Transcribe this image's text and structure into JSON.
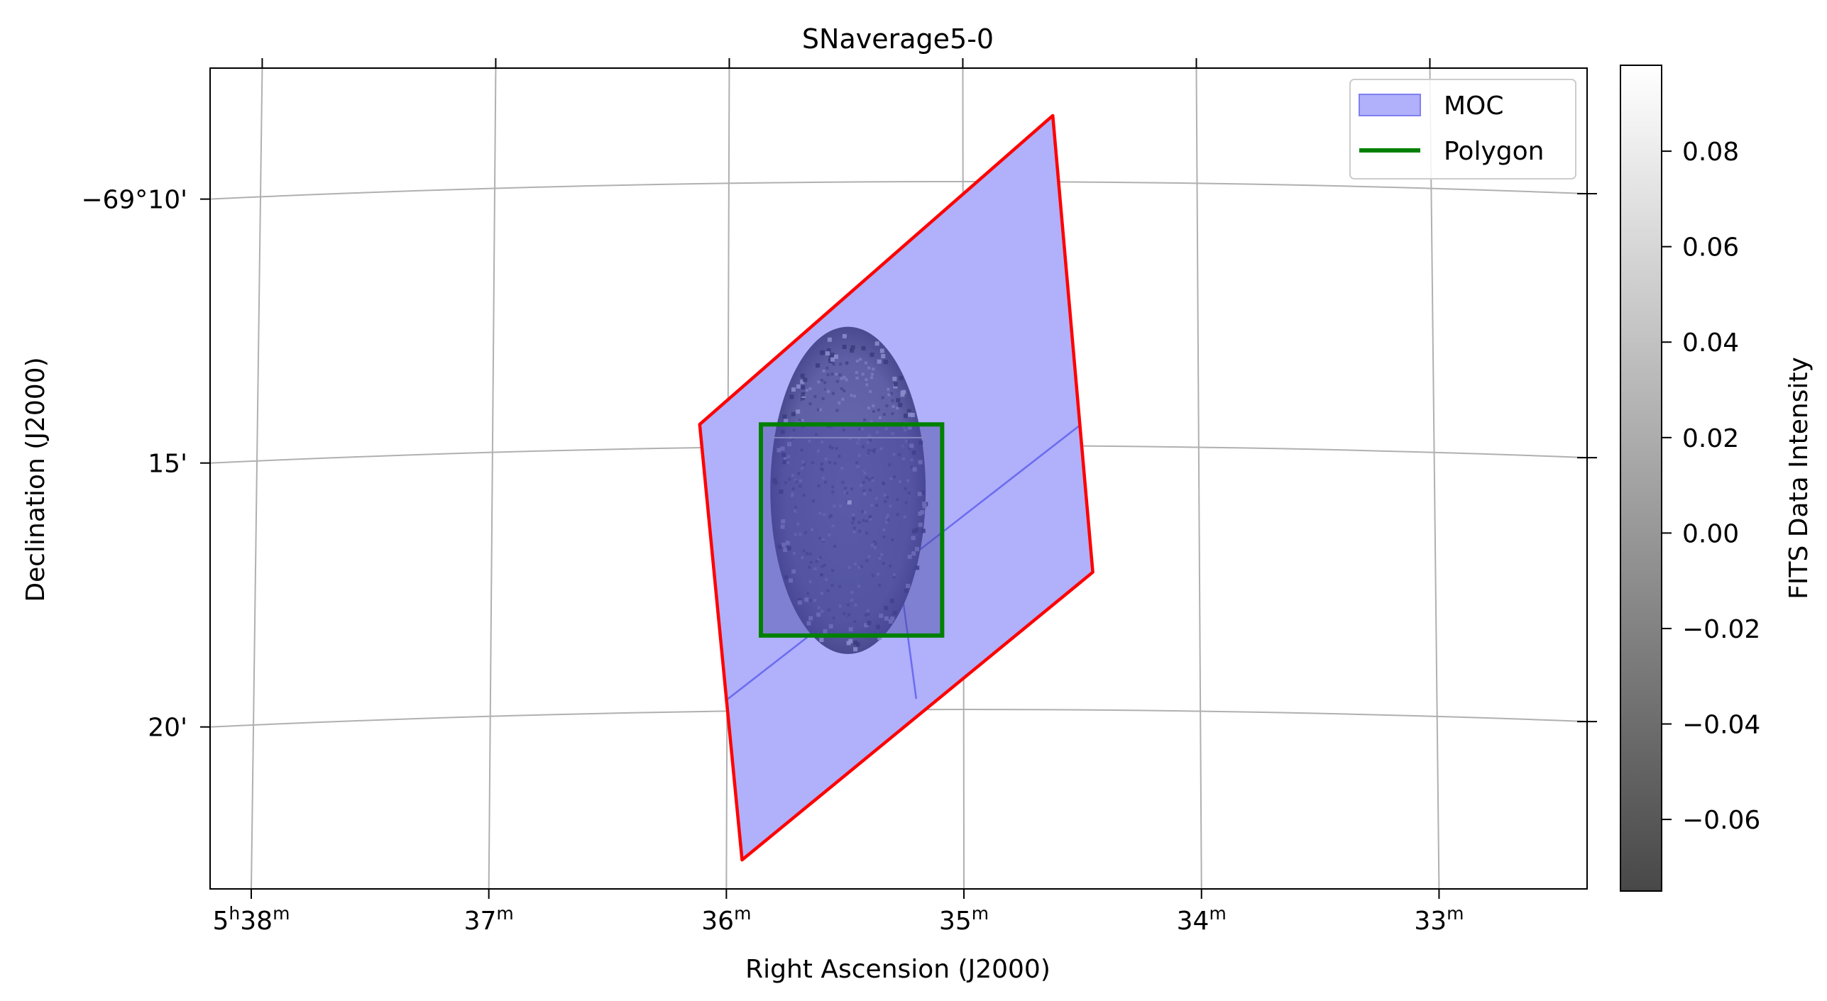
{
  "chart_data": {
    "type": "sky-map",
    "title": "SNaverage5-0",
    "xlabel": "Right Ascension (J2000)",
    "ylabel": "Declination (J2000)",
    "x_units": "minutes of RA (5h + value)",
    "y_units": "arcminutes below -69 deg",
    "xlim": [
      38.2,
      32.35
    ],
    "ylim": [
      23.4,
      7.85
    ],
    "grid": true,
    "x_ticks": [
      {
        "value": 38,
        "main": "5",
        "sup1": "h",
        "main2": "38",
        "sup2": "m"
      },
      {
        "value": 37,
        "main": "",
        "sup1": "",
        "main2": "37",
        "sup2": "m"
      },
      {
        "value": 36,
        "main": "",
        "sup1": "",
        "main2": "36",
        "sup2": "m"
      },
      {
        "value": 35,
        "main": "",
        "sup1": "",
        "main2": "35",
        "sup2": "m"
      },
      {
        "value": 34,
        "main": "",
        "sup1": "",
        "main2": "34",
        "sup2": "m"
      },
      {
        "value": 33,
        "main": "",
        "sup1": "",
        "main2": "33",
        "sup2": "m"
      }
    ],
    "y_ticks": [
      {
        "value": 10,
        "label": "−69°10'"
      },
      {
        "value": 15,
        "label": "15'"
      },
      {
        "value": 20,
        "label": "20'"
      }
    ],
    "moc_region": {
      "fill": "#b0b0fb",
      "outline_color": "#ff0000",
      "vertices": [
        [
          36.12,
          14.6
        ],
        [
          34.62,
          8.75
        ],
        [
          34.45,
          17.4
        ],
        [
          35.94,
          22.85
        ]
      ]
    },
    "moc_inner_lines": [
      {
        "points": [
          [
            36.0,
            19.8
          ],
          [
            34.5,
            14.6
          ]
        ]
      },
      {
        "points": [
          [
            35.26,
            17.8
          ],
          [
            35.2,
            19.8
          ]
        ]
      }
    ],
    "polygon": {
      "color": "#008000",
      "vertices": [
        [
          35.86,
          14.6
        ],
        [
          35.09,
          14.6
        ],
        [
          35.09,
          18.6
        ],
        [
          35.86,
          18.6
        ]
      ]
    },
    "fits_image": {
      "center": [
        35.49,
        15.85
      ],
      "radius_ra": 0.33,
      "radius_dec": 3.1
    },
    "legend": {
      "position": "top-right",
      "entries": [
        {
          "label": "MOC",
          "kind": "patch",
          "color": "#b0b0fb",
          "edge": "#8080f0"
        },
        {
          "label": "Polygon",
          "kind": "line",
          "color": "#008000"
        }
      ]
    },
    "colorbar": {
      "label": "FITS Data Intensity",
      "cmap": "gray",
      "vmin": -0.075,
      "vmax": 0.098,
      "ticks": [
        {
          "value": 0.08,
          "label": "0.08"
        },
        {
          "value": 0.06,
          "label": "0.06"
        },
        {
          "value": 0.04,
          "label": "0.04"
        },
        {
          "value": 0.02,
          "label": "0.02"
        },
        {
          "value": 0.0,
          "label": "0.00"
        },
        {
          "value": -0.02,
          "label": "−0.02"
        },
        {
          "value": -0.04,
          "label": "−0.04"
        },
        {
          "value": -0.06,
          "label": "−0.06"
        }
      ]
    }
  }
}
